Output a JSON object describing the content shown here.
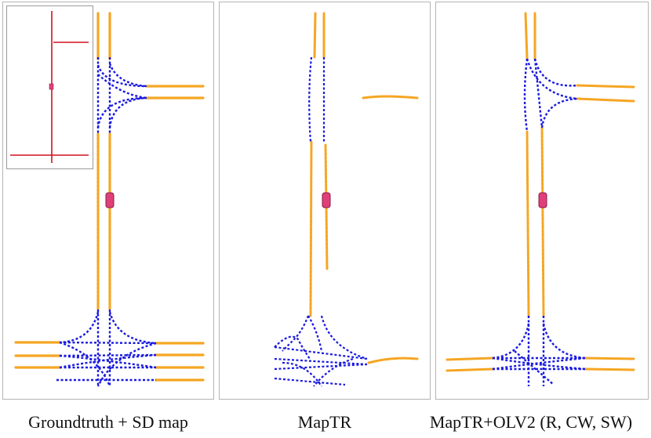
{
  "panels": [
    {
      "caption": "Groundtruth + SD map",
      "has_sd_inset": true
    },
    {
      "caption": "MapTR",
      "has_sd_inset": false
    },
    {
      "caption": "MapTR+OLV2 (R, CW, SW)",
      "has_sd_inset": false
    }
  ],
  "colors": {
    "lane_divider": "#f5a623",
    "centerline": "#1a1ae0",
    "sd_map": "#d01020",
    "ego_vehicle": "#e0407a"
  }
}
